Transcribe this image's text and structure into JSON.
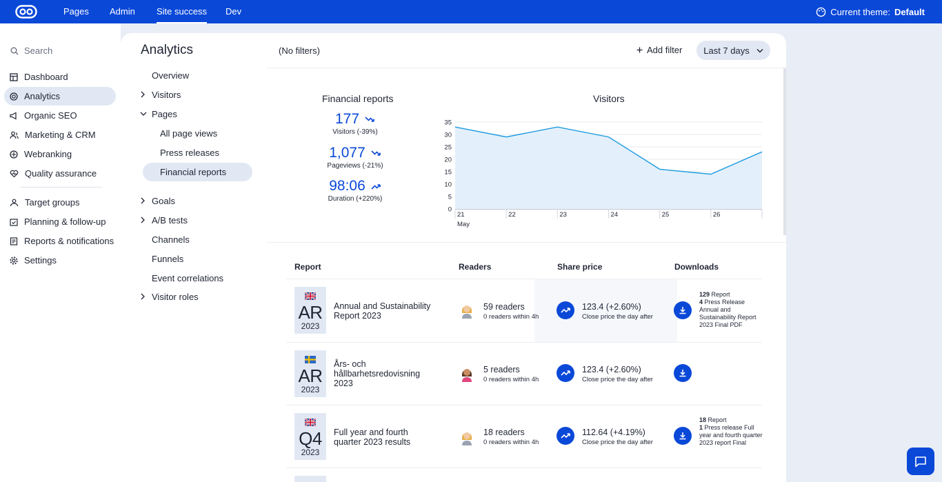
{
  "topbar": {
    "nav": [
      "Pages",
      "Admin",
      "Site success",
      "Dev"
    ],
    "theme_label": "Current theme:",
    "theme_value": "Default"
  },
  "leftnav": {
    "search_placeholder": "Search",
    "items": [
      {
        "label": "Dashboard",
        "icon": "dashboard-icon"
      },
      {
        "label": "Analytics",
        "icon": "analytics-icon",
        "active": true
      },
      {
        "label": "Organic SEO",
        "icon": "megaphone-icon"
      },
      {
        "label": "Marketing & CRM",
        "icon": "users-icon"
      },
      {
        "label": "Webranking",
        "icon": "target-icon"
      },
      {
        "label": "Quality assurance",
        "icon": "heart-icon"
      },
      {
        "label": "Target groups",
        "icon": "group-icon"
      },
      {
        "label": "Planning & follow-up",
        "icon": "calendar-icon"
      },
      {
        "label": "Reports & notifications",
        "icon": "report-icon"
      },
      {
        "label": "Settings",
        "icon": "gear-icon"
      }
    ]
  },
  "subnav": {
    "title": "Analytics",
    "items": [
      {
        "label": "Overview"
      },
      {
        "label": "Visitors",
        "chevron": "right"
      },
      {
        "label": "Pages",
        "chevron": "down"
      },
      {
        "label": "All page views"
      },
      {
        "label": "Press releases"
      },
      {
        "label": "Financial reports",
        "active": true
      },
      {
        "label": "Goals",
        "chevron": "right"
      },
      {
        "label": "A/B tests",
        "chevron": "right"
      },
      {
        "label": "Channels"
      },
      {
        "label": "Funnels"
      },
      {
        "label": "Event correlations"
      },
      {
        "label": "Visitor roles",
        "chevron": "right"
      }
    ]
  },
  "filters": {
    "status": "(No filters)",
    "add_filter": "Add filter",
    "range": "Last 7 days"
  },
  "summary": {
    "title": "Financial reports",
    "kpis": [
      {
        "value": "177",
        "label": "Visitors (-39%)",
        "trend": "down"
      },
      {
        "value": "1,077",
        "label": "Pageviews (-21%)",
        "trend": "down"
      },
      {
        "value": "98:06",
        "label": "Duration (+220%)",
        "trend": "up"
      }
    ]
  },
  "chart_data": {
    "type": "area",
    "title": "Visitors",
    "x": [
      "21",
      "22",
      "23",
      "24",
      "25",
      "26",
      ""
    ],
    "x_sublabel": "May",
    "values": [
      33,
      29,
      33,
      29,
      16,
      14,
      23
    ],
    "ylim": [
      0,
      35
    ],
    "yticks": [
      0,
      5,
      10,
      15,
      20,
      25,
      30,
      35
    ],
    "grid": true,
    "color": "#1e9be0",
    "fill": "#e3f0fb"
  },
  "table": {
    "headers": [
      "Report",
      "Readers",
      "Share price",
      "Downloads"
    ],
    "rows": [
      {
        "flag": "uk",
        "code": "AR",
        "year": "2023",
        "title": "Annual and Sustainability Report 2023",
        "readers": "59 readers",
        "readers_sub": "0 readers within 4h",
        "price": "123.4 (+2.60%)",
        "price_sub": "Close price the day after",
        "dl_count1": "129",
        "dl_label1": "Report",
        "dl_count2": "4",
        "dl_label2": "Press Release",
        "dl_file": "Annual and Sustainability Report 2023 Final PDF"
      },
      {
        "flag": "se",
        "code": "AR",
        "year": "2023",
        "title": "Års- och hållbarhetsredovisning 2023",
        "readers": "5 readers",
        "readers_sub": "0 readers within 4h",
        "price": "123.4 (+2.60%)",
        "price_sub": "Close price the day after"
      },
      {
        "flag": "uk",
        "code": "Q4",
        "year": "2023",
        "title": "Full year and fourth quarter 2023 results",
        "readers": "18 readers",
        "readers_sub": "0 readers within 4h",
        "price": "112.64 (+4.19%)",
        "price_sub": "Close price the day after",
        "dl_count1": "18",
        "dl_label1": "Report",
        "dl_count2": "1",
        "dl_label2": "Press release Full year and fourth quarter 2023 report Final"
      }
    ]
  }
}
